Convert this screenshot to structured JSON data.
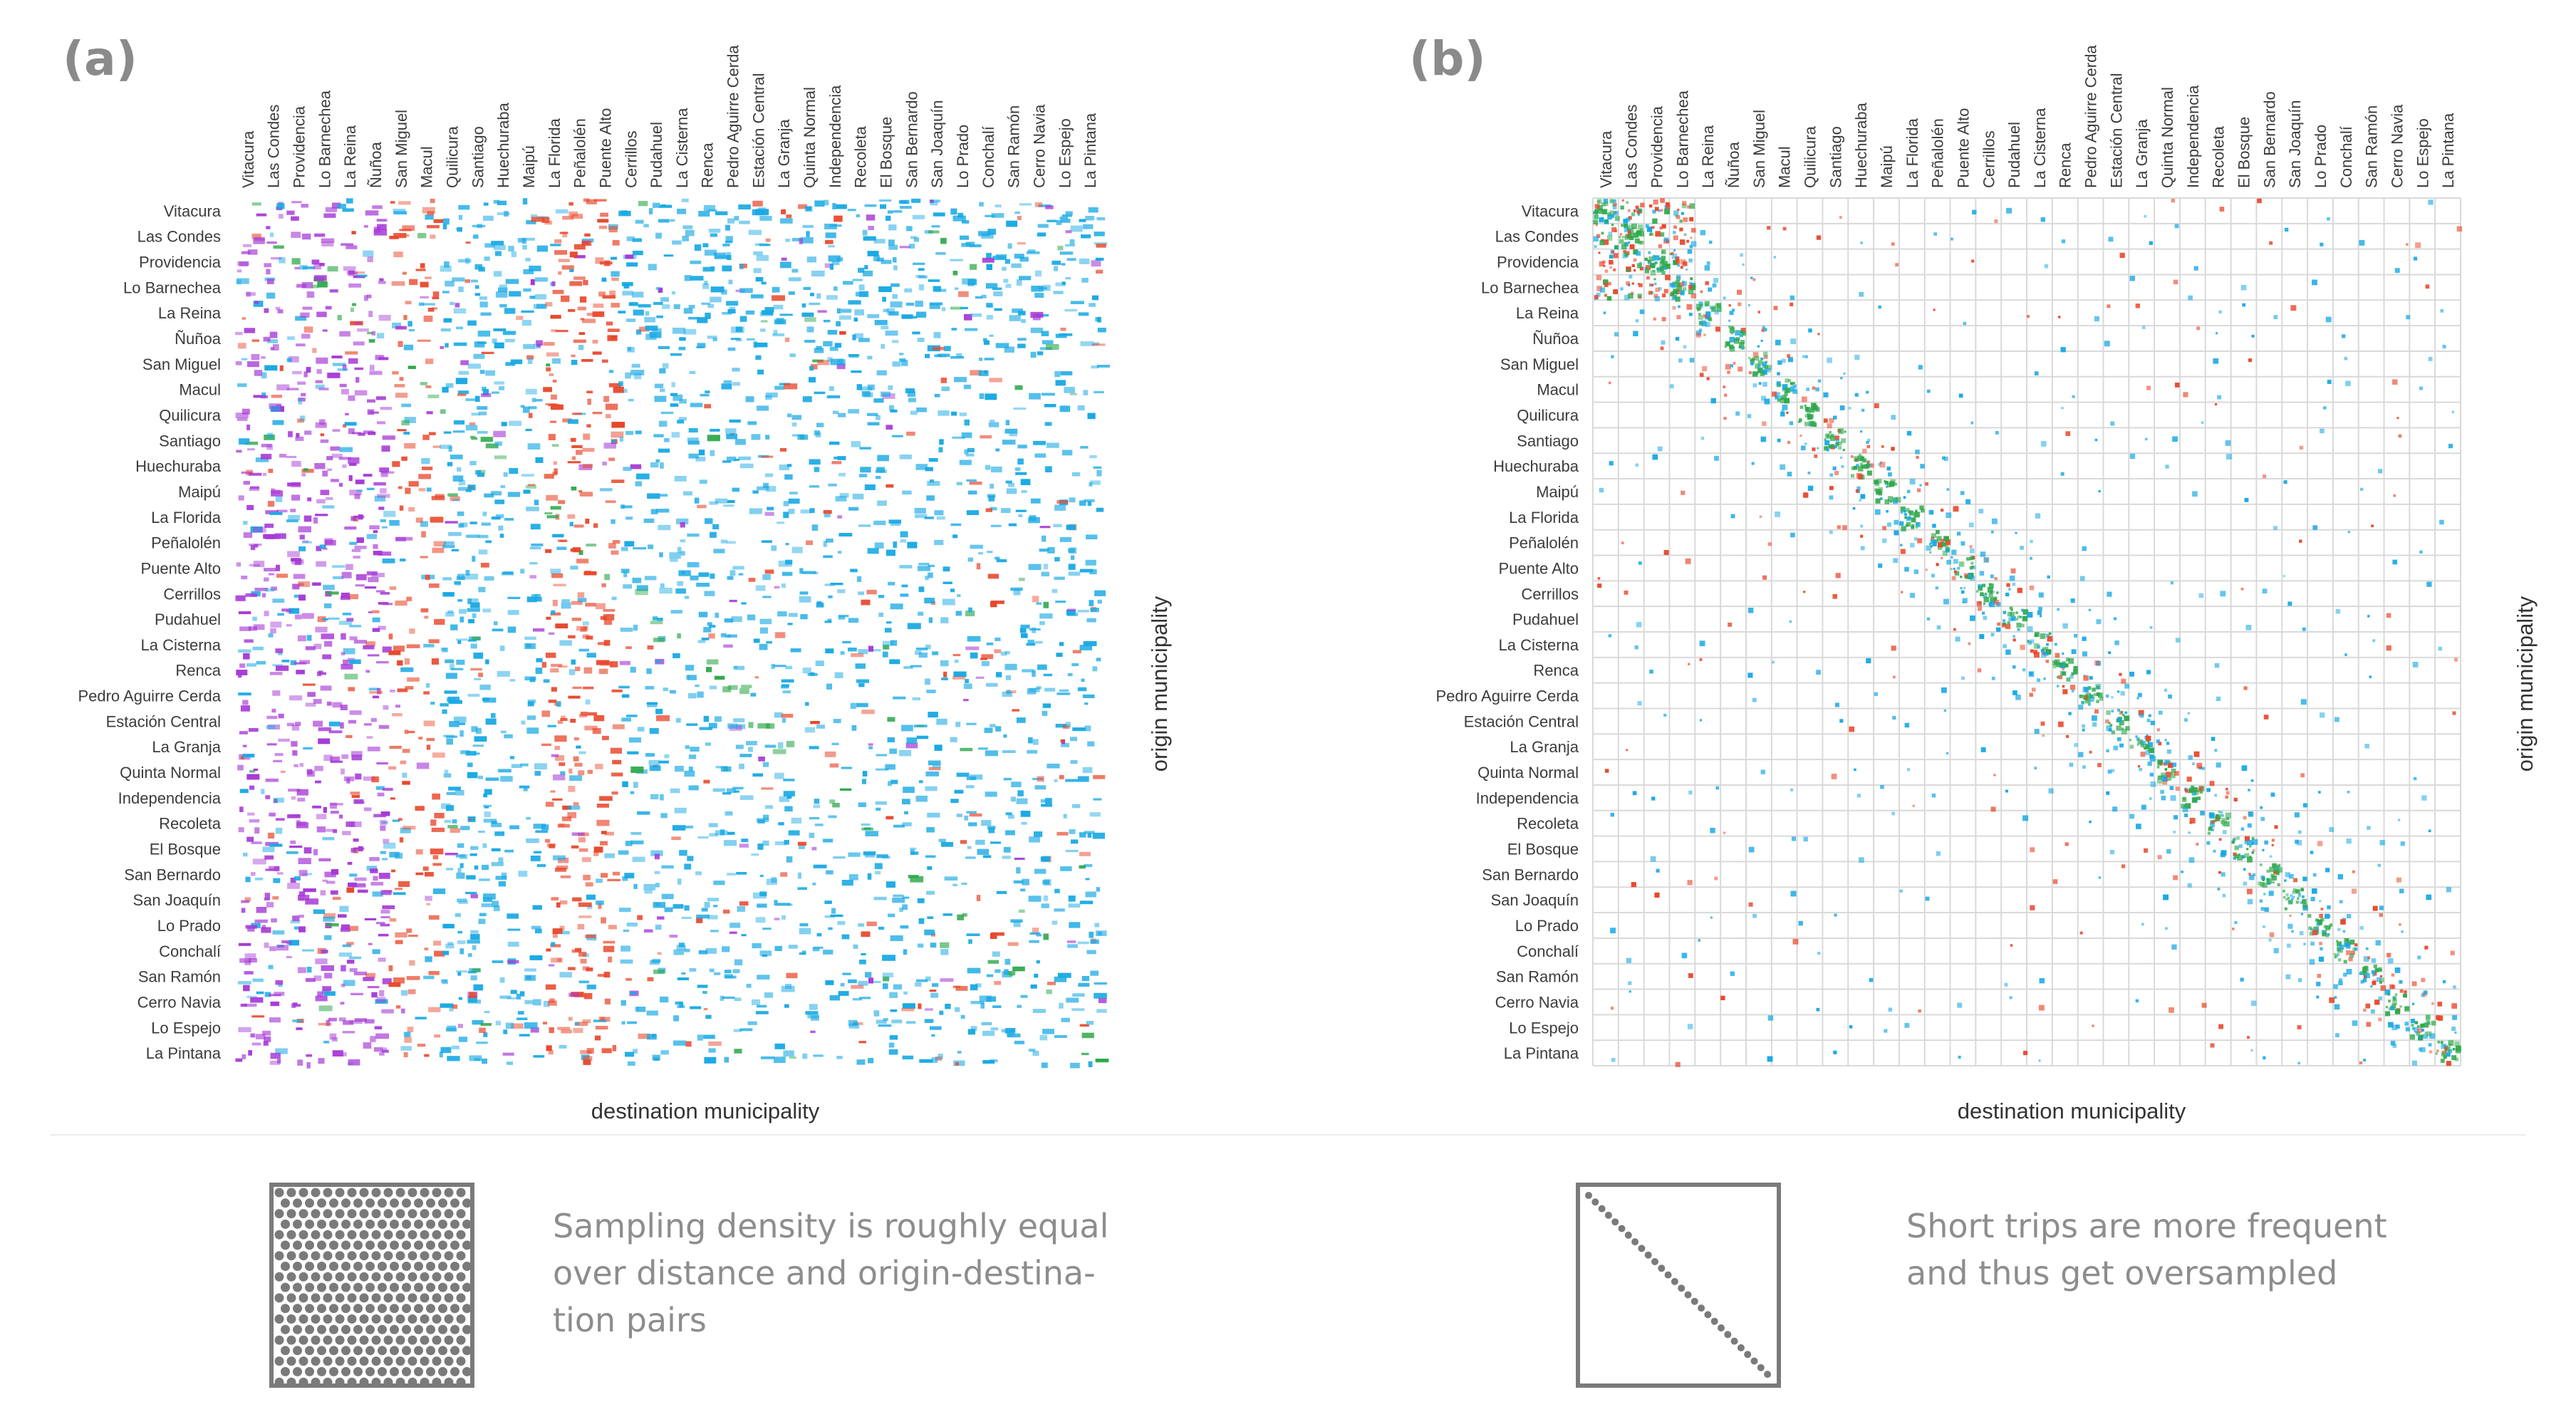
{
  "panels": {
    "a": {
      "letter": "(a)",
      "x_label": "destination municipality",
      "y_label": "origin municipality"
    },
    "b": {
      "letter": "(b)",
      "x_label": "destination municipality",
      "y_label": "origin municipality"
    }
  },
  "legend": {
    "a": {
      "lines": [
        "Sampling density is roughly equal",
        "over distance and origin-destina-",
        "tion pairs"
      ]
    },
    "b": {
      "lines": [
        "Short trips are more frequent",
        "and thus get oversampled"
      ]
    }
  },
  "colors": {
    "east": "#e8472b",
    "central": "#1aa9e4",
    "north": "#a63ad6",
    "local": "#2fa84b",
    "grid": "#d9d9d9",
    "legend_gray": "#7a7a7a"
  },
  "chart_data": [
    {
      "type": "heatmap",
      "title": "(a)",
      "xlabel": "destination municipality",
      "ylabel": "origin municipality",
      "categories": [
        "Vitacura",
        "Las Condes",
        "Providencia",
        "Lo Barnechea",
        "La Reina",
        "Ñuñoa",
        "San Miguel",
        "Macul",
        "Quilicura",
        "Santiago",
        "Huechuraba",
        "Maipú",
        "La Florida",
        "Peñalolén",
        "Puente Alto",
        "Cerrillos",
        "Pudahuel",
        "La Cisterna",
        "Renca",
        "Pedro Aguirre Cerda",
        "Estación Central",
        "La Granja",
        "Quinta Normal",
        "Independencia",
        "Recoleta",
        "El Bosque",
        "San Bernardo",
        "San Joaquín",
        "Lo Prado",
        "Conchalí",
        "San Ramón",
        "Cerro Navia",
        "Lo Espejo",
        "La Pintana"
      ],
      "sampling": "uniform",
      "grid": false
    },
    {
      "type": "heatmap",
      "title": "(b)",
      "xlabel": "destination municipality",
      "ylabel": "origin municipality",
      "categories": [
        "Vitacura",
        "Las Condes",
        "Providencia",
        "Lo Barnechea",
        "La Reina",
        "Ñuñoa",
        "San Miguel",
        "Macul",
        "Quilicura",
        "Santiago",
        "Huechuraba",
        "Maipú",
        "La Florida",
        "Peñalolén",
        "Puente Alto",
        "Cerrillos",
        "Pudahuel",
        "La Cisterna",
        "Renca",
        "Pedro Aguirre Cerda",
        "Estación Central",
        "La Granja",
        "Quinta Normal",
        "Independencia",
        "Recoleta",
        "El Bosque",
        "San Bernardo",
        "San Joaquín",
        "Lo Prado",
        "Conchalí",
        "San Ramón",
        "Cerro Navia",
        "Lo Espejo",
        "La Pintana"
      ],
      "sampling": "diagonal-oversampled",
      "grid": true
    }
  ]
}
